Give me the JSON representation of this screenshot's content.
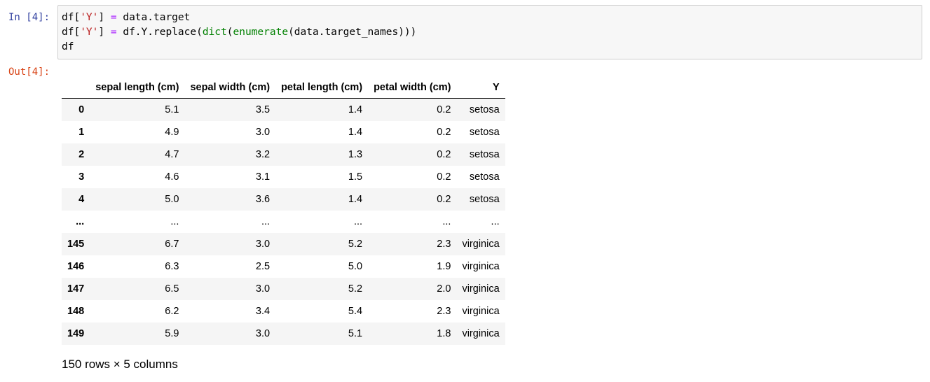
{
  "cell": {
    "in_prompt": "In [4]:",
    "out_prompt": "Out[4]:",
    "code_lines": [
      [
        {
          "t": "df[",
          "c": "c-txt"
        },
        {
          "t": "'Y'",
          "c": "c-str"
        },
        {
          "t": "] ",
          "c": "c-txt"
        },
        {
          "t": "=",
          "c": "c-op"
        },
        {
          "t": " data.target",
          "c": "c-txt"
        }
      ],
      [
        {
          "t": "df[",
          "c": "c-txt"
        },
        {
          "t": "'Y'",
          "c": "c-str"
        },
        {
          "t": "] ",
          "c": "c-txt"
        },
        {
          "t": "=",
          "c": "c-op"
        },
        {
          "t": " df.Y.replace(",
          "c": "c-txt"
        },
        {
          "t": "dict",
          "c": "c-builtin"
        },
        {
          "t": "(",
          "c": "c-txt"
        },
        {
          "t": "enumerate",
          "c": "c-builtin"
        },
        {
          "t": "(data.target_names)))",
          "c": "c-txt"
        }
      ],
      [
        {
          "t": "df",
          "c": "c-txt"
        }
      ]
    ]
  },
  "dataframe": {
    "columns": [
      "",
      "sepal length (cm)",
      "sepal width (cm)",
      "petal length (cm)",
      "petal width (cm)",
      "Y"
    ],
    "rows": [
      {
        "index": "0",
        "values": [
          "5.1",
          "3.5",
          "1.4",
          "0.2",
          "setosa"
        ]
      },
      {
        "index": "1",
        "values": [
          "4.9",
          "3.0",
          "1.4",
          "0.2",
          "setosa"
        ]
      },
      {
        "index": "2",
        "values": [
          "4.7",
          "3.2",
          "1.3",
          "0.2",
          "setosa"
        ]
      },
      {
        "index": "3",
        "values": [
          "4.6",
          "3.1",
          "1.5",
          "0.2",
          "setosa"
        ]
      },
      {
        "index": "4",
        "values": [
          "5.0",
          "3.6",
          "1.4",
          "0.2",
          "setosa"
        ]
      },
      {
        "index": "...",
        "values": [
          "...",
          "...",
          "...",
          "...",
          "..."
        ]
      },
      {
        "index": "145",
        "values": [
          "6.7",
          "3.0",
          "5.2",
          "2.3",
          "virginica"
        ]
      },
      {
        "index": "146",
        "values": [
          "6.3",
          "2.5",
          "5.0",
          "1.9",
          "virginica"
        ]
      },
      {
        "index": "147",
        "values": [
          "6.5",
          "3.0",
          "5.2",
          "2.0",
          "virginica"
        ]
      },
      {
        "index": "148",
        "values": [
          "6.2",
          "3.4",
          "5.4",
          "2.3",
          "virginica"
        ]
      },
      {
        "index": "149",
        "values": [
          "5.9",
          "3.0",
          "5.1",
          "1.8",
          "virginica"
        ]
      }
    ],
    "footer": "150 rows × 5 columns"
  }
}
